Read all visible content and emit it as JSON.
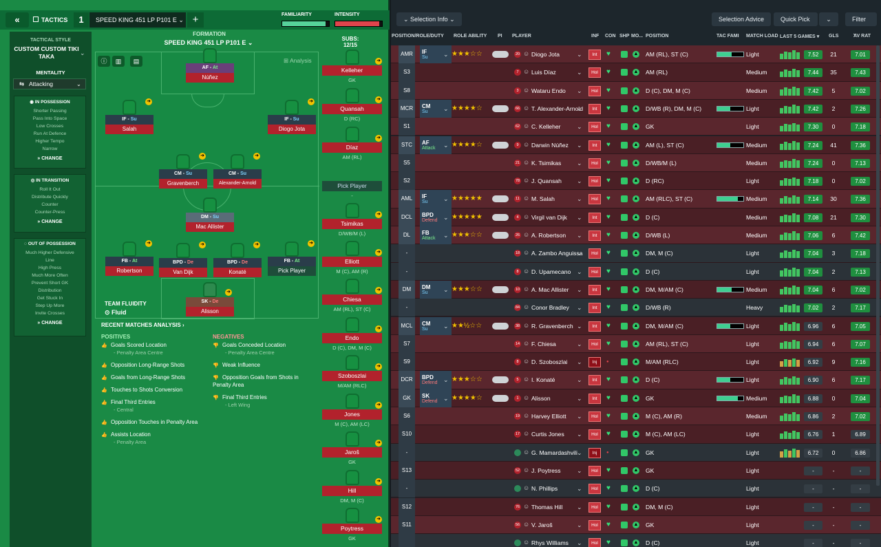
{
  "topbar": {
    "back": "«",
    "tactics_label": "TACTICS",
    "tactic_number": "1",
    "tactic_name": "SPEED KING 451 LP P101 E",
    "tactic_caret": "⌄",
    "add": "+",
    "familiarity_label": "FAMILIARITY",
    "intensity_label": "INTENSITY",
    "familiarity": 0.92,
    "intensity": 0.94
  },
  "sidebar": {
    "style_label": "TACTICAL STYLE",
    "style_value": "CUSTOM CUSTOM TIKI TAKA",
    "mentality_label": "MENTALITY",
    "mentality_value": "Attacking",
    "in_possession": {
      "title": "IN POSSESSION",
      "items": [
        "Shorter Passing",
        "Pass Into Space",
        "Low Crosses",
        "Run At Defence",
        "Higher Tempo",
        "Narrow"
      ],
      "change": "CHANGE"
    },
    "in_transition": {
      "title": "IN TRANSITION",
      "items": [
        "Roll It Out",
        "Distribute Quickly",
        "Counter",
        "Counter-Press"
      ],
      "change": "CHANGE"
    },
    "out_of_possession": {
      "title": "OUT OF POSSESSION",
      "items": [
        "Much Higher Defensive",
        "Line",
        "High Press",
        "Much More Often",
        "Prevent Short GK",
        "Distribution",
        "Get Stuck In",
        "Step Up More",
        "Invite Crosses"
      ],
      "change": "CHANGE"
    }
  },
  "formation": {
    "label": "FORMATION",
    "name": "SPEED KING 451 LP P101 E",
    "analysis": "Analysis",
    "fluidity_label": "TEAM FLUIDITY",
    "fluidity_value": "Fluid"
  },
  "pitch_players": [
    {
      "role": "AF",
      "duty": "At",
      "name": "Núñez"
    },
    {
      "role": "IF",
      "duty": "Su",
      "name": "Salah"
    },
    {
      "role": "IF",
      "duty": "Su",
      "name": "Diogo Jota"
    },
    {
      "role": "CM",
      "duty": "Su",
      "name": "Gravenberch"
    },
    {
      "role": "CM",
      "duty": "Su",
      "name": "Alexander-Arnold"
    },
    {
      "role": "DM",
      "duty": "Su",
      "name": "Mac Allister"
    },
    {
      "role": "FB",
      "duty": "At",
      "name": "Robertson"
    },
    {
      "role": "BPD",
      "duty": "De",
      "name": "Van Dijk"
    },
    {
      "role": "BPD",
      "duty": "De",
      "name": "Konaté"
    },
    {
      "role": "FB",
      "duty": "At",
      "name": "Pick Player"
    },
    {
      "role": "SK",
      "duty": "De",
      "name": "Alisson"
    }
  ],
  "subs": {
    "label": "SUBS:",
    "count": "12/15",
    "items": [
      {
        "name": "Kelleher",
        "pos": "GK"
      },
      {
        "name": "Quansah",
        "pos": "D (RC)"
      },
      {
        "name": "Díaz",
        "pos": "AM (RL)"
      },
      {
        "name": "Pick Player",
        "pos": "-"
      },
      {
        "name": "Tsimikas",
        "pos": "D/WB/M (L)"
      },
      {
        "name": "Elliott",
        "pos": "M (C), AM (R)"
      },
      {
        "name": "Chiesa",
        "pos": "AM (RL), ST (C)"
      },
      {
        "name": "Endo",
        "pos": "D (C), DM, M (C)"
      },
      {
        "name": "Szoboszlai",
        "pos": "M/AM (RLC)"
      },
      {
        "name": "Jones",
        "pos": "M (C), AM (LC)"
      },
      {
        "name": "Jaroš",
        "pos": "GK"
      },
      {
        "name": "Hill",
        "pos": "DM, M (C)"
      },
      {
        "name": "Poytress",
        "pos": "GK"
      }
    ]
  },
  "analysis": {
    "title": "RECENT MATCHES ANALYSIS ›",
    "positives_label": "POSITIVES",
    "negatives_label": "NEGATIVES",
    "positives": [
      {
        "t": "Goals Scored Location",
        "s": "- Penalty Area Centre"
      },
      {
        "t": "Opposition Long-Range Shots",
        "s": ""
      },
      {
        "t": "Goals from Long-Range Shots",
        "s": ""
      },
      {
        "t": "Touches to Shots Conversion",
        "s": ""
      },
      {
        "t": "Final Third Entries",
        "s": "- Central"
      },
      {
        "t": "Opposition Touches in Penalty Area",
        "s": ""
      },
      {
        "t": "Assists Location",
        "s": "- Penalty Area"
      }
    ],
    "negatives": [
      {
        "t": "Goals Conceded Location",
        "s": "- Penalty Area Centre"
      },
      {
        "t": "Weak Influence",
        "s": ""
      },
      {
        "t": "Opposition Goals from Shots in Penalty Area",
        "s": ""
      },
      {
        "t": "Final Third Entries",
        "s": "- Left Wing"
      }
    ]
  },
  "right_toolbar": {
    "selection_info": "Selection Info",
    "selection_advice": "Selection Advice",
    "quick_pick": "Quick Pick",
    "filter": "Filter"
  },
  "columns": {
    "pos": "POSITION/ROLE/DUTY",
    "ability": "ROLE ABILITY",
    "pi": "PI",
    "player": "PLAYER",
    "inf": "INF",
    "con": "CON",
    "shp": "SHP",
    "mo": "MO...",
    "position": "POSITION",
    "tacfam": "TAC FAMI",
    "load": "MATCH LOAD",
    "last5": "LAST 5 GAMES",
    "gls": "GLS",
    "avrat": "AV RAT"
  },
  "rows": [
    {
      "slot": "AMR",
      "role": "IF",
      "duty": "Su",
      "stars": "★★★☆☆",
      "num": "20",
      "name": "Diogo Jota",
      "inf": "Int",
      "pos": "AM (RL), ST (C)",
      "fam": 0.55,
      "load": "Light",
      "last": "7.52",
      "gls": "21",
      "av": "7.01"
    },
    {
      "slot": "S3",
      "role": "",
      "duty": "",
      "stars": "",
      "num": "7",
      "name": "Luis Díaz",
      "inf": "Hol",
      "pos": "AM (RL)",
      "fam": 0,
      "load": "Medium",
      "last": "7.44",
      "gls": "35",
      "av": "7.43"
    },
    {
      "slot": "S8",
      "role": "",
      "duty": "",
      "stars": "",
      "num": "3",
      "name": "Wataru Endo",
      "inf": "Hol",
      "pos": "D (C), DM, M (C)",
      "fam": 0,
      "load": "Medium",
      "last": "7.42",
      "gls": "5",
      "av": "7.02"
    },
    {
      "slot": "MCR",
      "role": "CM",
      "duty": "Su",
      "stars": "★★★★☆",
      "num": "66",
      "name": "T. Alexander-Arnold",
      "inf": "Int",
      "pos": "D/WB (R), DM, M (C)",
      "fam": 0.5,
      "load": "Light",
      "last": "7.42",
      "gls": "2",
      "av": "7.26"
    },
    {
      "slot": "S1",
      "role": "",
      "duty": "",
      "stars": "",
      "num": "62",
      "name": "C. Kelleher",
      "inf": "Hol",
      "pos": "GK",
      "fam": 0,
      "load": "Light",
      "last": "7.30",
      "gls": "0",
      "av": "7.18"
    },
    {
      "slot": "STC",
      "role": "AF",
      "duty": "Attack",
      "stars": "★★★★☆",
      "num": "9",
      "name": "Darwin Núñez",
      "inf": "Int",
      "pos": "AM (L), ST (C)",
      "fam": 0.5,
      "load": "Medium",
      "last": "7.24",
      "gls": "41",
      "av": "7.36"
    },
    {
      "slot": "S5",
      "role": "",
      "duty": "",
      "stars": "",
      "num": "21",
      "name": "K. Tsimikas",
      "inf": "Hol",
      "pos": "D/WB/M (L)",
      "fam": 0,
      "load": "Medium",
      "last": "7.24",
      "gls": "0",
      "av": "7.13"
    },
    {
      "slot": "S2",
      "role": "",
      "duty": "",
      "stars": "",
      "num": "78",
      "name": "J. Quansah",
      "inf": "Hol",
      "pos": "D (RC)",
      "fam": 0,
      "load": "Light",
      "last": "7.18",
      "gls": "0",
      "av": "7.02"
    },
    {
      "slot": "AML",
      "role": "IF",
      "duty": "Su",
      "stars": "★★★★★",
      "num": "11",
      "name": "M. Salah",
      "inf": "Hol",
      "pos": "AM (RLC), ST (C)",
      "fam": 0.8,
      "load": "Medium",
      "last": "7.14",
      "gls": "30",
      "av": "7.36"
    },
    {
      "slot": "DCL",
      "role": "BPD",
      "duty": "Defend",
      "stars": "★★★★★",
      "num": "4",
      "name": "Virgil van Dijk",
      "inf": "Int",
      "pos": "D (C)",
      "fam": 0,
      "load": "Medium",
      "last": "7.08",
      "gls": "21",
      "av": "7.30"
    },
    {
      "slot": "DL",
      "role": "FB",
      "duty": "Attack",
      "stars": "★★★☆☆",
      "num": "26",
      "name": "A. Robertson",
      "inf": "Int",
      "pos": "D/WB (L)",
      "fam": 0,
      "load": "Medium",
      "last": "7.06",
      "gls": "6",
      "av": "7.42"
    },
    {
      "slot": "-",
      "role": "",
      "duty": "",
      "stars": "",
      "num": "18",
      "name": "A. Zambo Anguissa",
      "inf": "Hol",
      "pos": "DM, M (C)",
      "fam": 0,
      "load": "Light",
      "last": "7.04",
      "gls": "3",
      "av": "7.18"
    },
    {
      "slot": "-",
      "role": "",
      "duty": "",
      "stars": "",
      "num": "8",
      "name": "D. Upamecano",
      "inf": "Hol",
      "pos": "D (C)",
      "fam": 0,
      "load": "Light",
      "last": "7.04",
      "gls": "2",
      "av": "7.13"
    },
    {
      "slot": "DM",
      "role": "DM",
      "duty": "Su",
      "stars": "★★★☆☆",
      "num": "10",
      "name": "A. Mac Allister",
      "inf": "Int",
      "pos": "DM, M/AM (C)",
      "fam": 0.55,
      "load": "Medium",
      "last": "7.04",
      "gls": "6",
      "av": "7.02"
    },
    {
      "slot": "-",
      "role": "",
      "duty": "",
      "stars": "",
      "num": "84",
      "name": "Conor Bradley",
      "inf": "Int",
      "pos": "D/WB (R)",
      "fam": 0,
      "load": "Heavy",
      "last": "7.02",
      "gls": "2",
      "av": "7.17"
    },
    {
      "slot": "MCL",
      "role": "CM",
      "duty": "Su",
      "stars": "★★½☆☆",
      "num": "38",
      "name": "R. Gravenberch",
      "inf": "Int",
      "pos": "DM, M/AM (C)",
      "fam": 0.5,
      "load": "Light",
      "last": "6.96",
      "gls": "6",
      "av": "7.05"
    },
    {
      "slot": "S7",
      "role": "",
      "duty": "",
      "stars": "",
      "num": "14",
      "name": "F. Chiesa",
      "inf": "Hol",
      "pos": "AM (RL), ST (C)",
      "fam": 0,
      "load": "Light",
      "last": "6.94",
      "gls": "6",
      "av": "7.07"
    },
    {
      "slot": "S9",
      "role": "",
      "duty": "",
      "stars": "",
      "num": "8",
      "name": "D. Szoboszlai",
      "inf": "Inj",
      "pos": "M/AM (RLC)",
      "fam": 0,
      "load": "Light",
      "last": "6.92",
      "gls": "9",
      "av": "7.16"
    },
    {
      "slot": "DCR",
      "role": "BPD",
      "duty": "Defend",
      "stars": "★★★☆☆",
      "num": "5",
      "name": "I. Konaté",
      "inf": "Int",
      "pos": "D (C)",
      "fam": 0.5,
      "load": "Light",
      "last": "6.90",
      "gls": "6",
      "av": "7.17"
    },
    {
      "slot": "GK",
      "role": "SK",
      "duty": "Defend",
      "stars": "★★★★☆",
      "num": "1",
      "name": "Alisson",
      "inf": "Int",
      "pos": "GK",
      "fam": 0.8,
      "load": "Medium",
      "last": "6.88",
      "gls": "0",
      "av": "7.04"
    },
    {
      "slot": "S6",
      "role": "",
      "duty": "",
      "stars": "",
      "num": "19",
      "name": "Harvey Elliott",
      "inf": "Hol",
      "pos": "M (C), AM (R)",
      "fam": 0,
      "load": "Medium",
      "last": "6.86",
      "gls": "2",
      "av": "7.02"
    },
    {
      "slot": "S10",
      "role": "",
      "duty": "",
      "stars": "",
      "num": "17",
      "name": "Curtis Jones",
      "inf": "Hol",
      "pos": "M (C), AM (LC)",
      "fam": 0,
      "load": "Light",
      "last": "6.76",
      "gls": "1",
      "av": "6.89"
    },
    {
      "slot": "-",
      "role": "",
      "duty": "",
      "stars": "",
      "num": "",
      "name": "G. Mamardashvili",
      "inf": "Inj",
      "pos": "GK",
      "fam": 0,
      "load": "Light",
      "last": "6.72",
      "gls": "0",
      "av": "6.86"
    },
    {
      "slot": "S13",
      "role": "",
      "duty": "",
      "stars": "",
      "num": "52",
      "name": "J. Poytress",
      "inf": "Hol",
      "pos": "GK",
      "fam": 0,
      "load": "Light",
      "last": "-",
      "gls": "-",
      "av": "-"
    },
    {
      "slot": "-",
      "role": "",
      "duty": "",
      "stars": "",
      "num": "",
      "name": "N. Phillips",
      "inf": "Hol",
      "pos": "D (C)",
      "fam": 0,
      "load": "Light",
      "last": "-",
      "gls": "-",
      "av": "-"
    },
    {
      "slot": "S12",
      "role": "",
      "duty": "",
      "stars": "",
      "num": "76",
      "name": "Thomas Hill",
      "inf": "Hol",
      "pos": "DM, M (C)",
      "fam": 0,
      "load": "Light",
      "last": "-",
      "gls": "-",
      "av": "-"
    },
    {
      "slot": "S11",
      "role": "",
      "duty": "",
      "stars": "",
      "num": "56",
      "name": "V. Jaroš",
      "inf": "Hol",
      "pos": "GK",
      "fam": 0,
      "load": "Light",
      "last": "-",
      "gls": "-",
      "av": "-"
    },
    {
      "slot": "",
      "role": "",
      "duty": "",
      "stars": "",
      "num": "",
      "name": "Rhys Williams",
      "inf": "Hol",
      "pos": "D (C)",
      "fam": 0,
      "load": "Light",
      "last": "-",
      "gls": "-",
      "av": "-"
    }
  ],
  "colors": {
    "pitch": "#1a8a45",
    "rating_green": "#1f8f3f",
    "influence_red": "#c9363f",
    "shirt_red": "#b2222c"
  }
}
